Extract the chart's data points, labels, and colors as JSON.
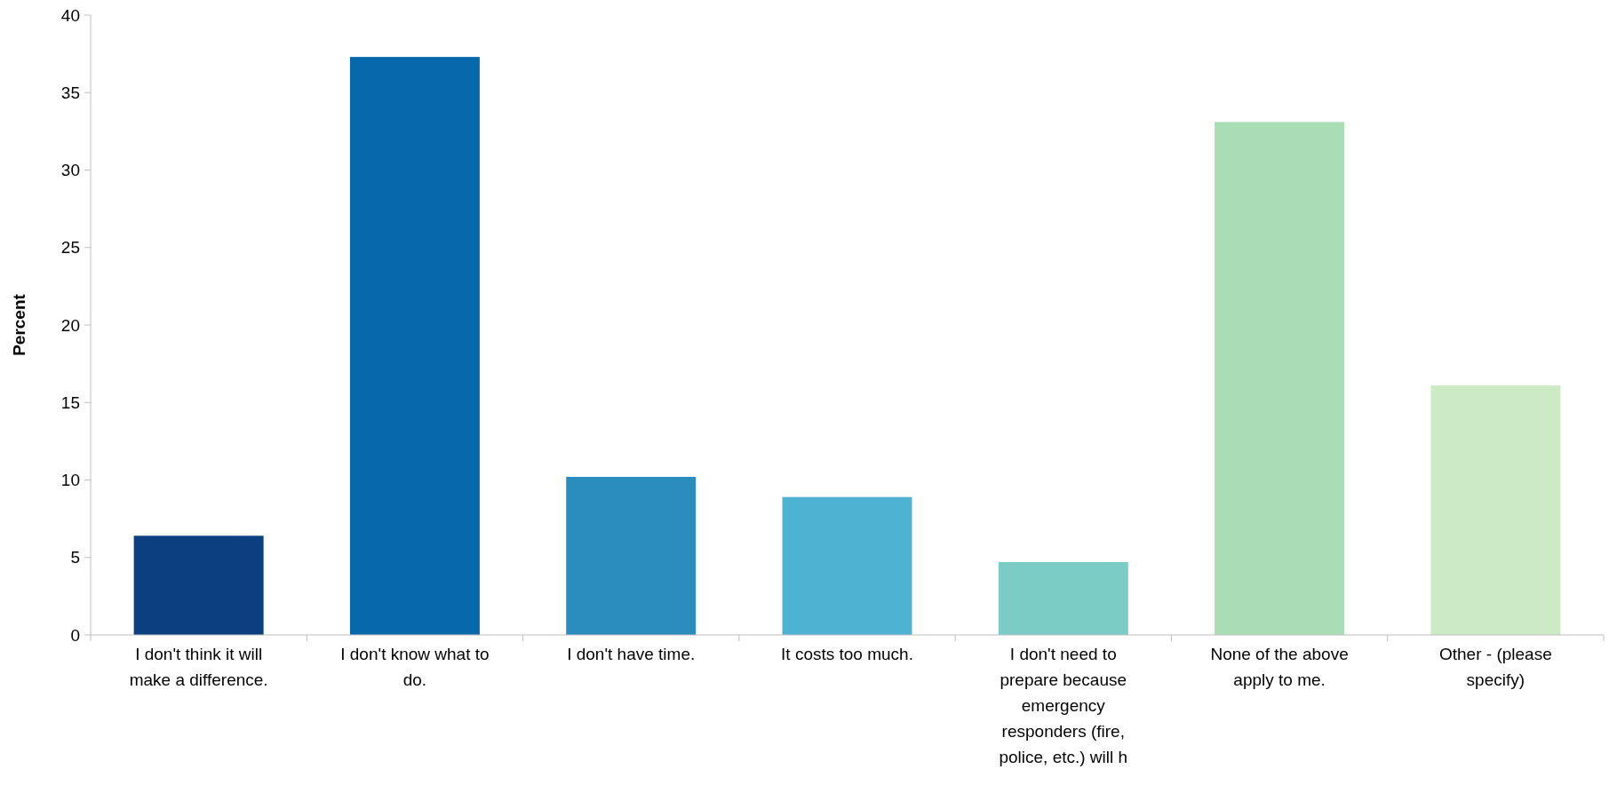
{
  "chart_data": {
    "type": "bar",
    "ylabel": "Percent",
    "categories": [
      "I don't think it will make a difference.",
      "I don't know what to do.",
      "I don't have time.",
      "It costs too much.",
      "I don't need to prepare because emergency responders (fire, police, etc.) will h",
      "None of the above apply to me.",
      "Other - (please specify)"
    ],
    "values": [
      6.4,
      37.3,
      10.2,
      8.9,
      4.7,
      33.1,
      16.1
    ],
    "colors": [
      "#0b3f80",
      "#0868ac",
      "#2b8cbe",
      "#4eb3d3",
      "#7bccc4",
      "#a8ddb5",
      "#ccebc5"
    ],
    "ylim": [
      0,
      40
    ],
    "yticks": [
      0,
      5,
      10,
      15,
      20,
      25,
      30,
      35,
      40
    ],
    "grid": false
  }
}
